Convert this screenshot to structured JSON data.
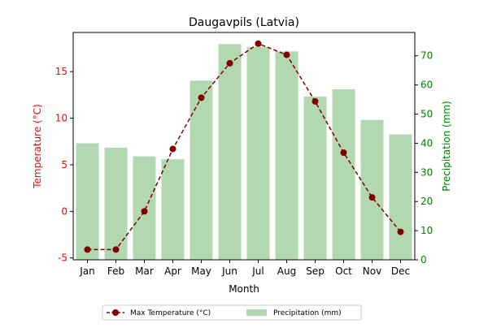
{
  "chart_data": {
    "type": "bar+line",
    "title": "Daugavpils (Latvia)",
    "xlabel": "Month",
    "ylabel_left": "Temperature (°C)",
    "ylabel_right": "Precipitation (mm)",
    "categories": [
      "Jan",
      "Feb",
      "Mar",
      "Apr",
      "May",
      "Jun",
      "Jul",
      "Aug",
      "Sep",
      "Oct",
      "Nov",
      "Dec"
    ],
    "ylim_left": [
      -5.2,
      19.2
    ],
    "ylim_right": [
      0,
      78
    ],
    "yticks_left": [
      -5,
      0,
      5,
      10,
      15
    ],
    "yticks_right": [
      0,
      10,
      20,
      30,
      40,
      50,
      60,
      70
    ],
    "grid": false,
    "legend_position": "bottom-center",
    "series": [
      {
        "name": "Max Temperature (°C)",
        "type": "line",
        "axis": "left",
        "color": "#7f0000",
        "line_style": "dashed",
        "marker": "circle",
        "values": [
          -4.1,
          -4.1,
          0.0,
          6.7,
          12.2,
          15.9,
          18.0,
          16.8,
          11.8,
          6.3,
          1.5,
          -2.2
        ]
      },
      {
        "name": "Precipitation (mm)",
        "type": "bar",
        "axis": "right",
        "color": "#b2d8b2",
        "values": [
          40,
          38.5,
          35.5,
          34.5,
          61.5,
          74,
          73,
          71.5,
          56,
          58.5,
          48,
          43
        ]
      }
    ],
    "colors": {
      "left_axis": "#ff0000",
      "right_axis": "#008000"
    }
  }
}
